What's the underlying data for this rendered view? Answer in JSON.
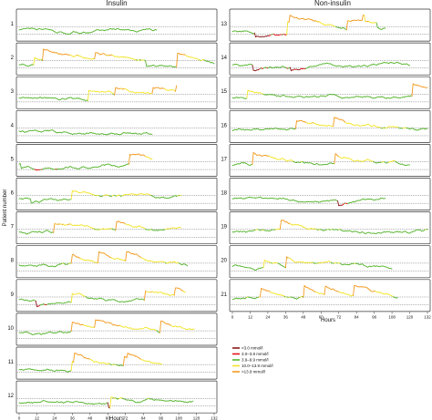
{
  "chart_data": {
    "type": "line",
    "ylabel": "Patient number",
    "xlabel": "Hours",
    "x_ticks": [
      0,
      12,
      24,
      36,
      48,
      60,
      72,
      84,
      96,
      108,
      120,
      132
    ],
    "x_range": [
      0,
      132
    ],
    "y_range_mmol": [
      0,
      22
    ],
    "reference_lines_mmol": [
      3.9,
      10.0
    ],
    "panels": [
      {
        "title": "Insulin",
        "patients": [
          {
            "id": "1",
            "hours": 93
          },
          {
            "id": "2",
            "hours": 132
          },
          {
            "id": "3",
            "hours": 107
          },
          {
            "id": "4",
            "hours": 90
          },
          {
            "id": "5",
            "hours": 90
          },
          {
            "id": "6",
            "hours": 110
          },
          {
            "id": "7",
            "hours": 110
          },
          {
            "id": "8",
            "hours": 114
          },
          {
            "id": "9",
            "hours": 113
          },
          {
            "id": "10",
            "hours": 119
          },
          {
            "id": "11",
            "hours": 97
          },
          {
            "id": "12",
            "hours": 118
          }
        ]
      },
      {
        "title": "Non-insulin",
        "patients": [
          {
            "id": "13",
            "hours": 104
          },
          {
            "id": "14",
            "hours": 120
          },
          {
            "id": "15",
            "hours": 132
          },
          {
            "id": "16",
            "hours": 132
          },
          {
            "id": "17",
            "hours": 120
          },
          {
            "id": "18",
            "hours": 104
          },
          {
            "id": "19",
            "hours": 132
          },
          {
            "id": "20",
            "hours": 108
          },
          {
            "id": "21",
            "hours": 112
          }
        ]
      }
    ],
    "legend": [
      {
        "label": "<3.0 mmol/l",
        "color": "#8b1a1a",
        "range": [
          0,
          3.0
        ]
      },
      {
        "label": "3.0–3.8 mmol/l",
        "color": "#e0161d",
        "range": [
          3.0,
          3.9
        ]
      },
      {
        "label": "3.9–9.9 mmol/l",
        "color": "#57b52f",
        "range": [
          3.9,
          10.0
        ]
      },
      {
        "label": "10.0–13.9 mmol/l",
        "color": "#f2e52a",
        "range": [
          10.0,
          14.0
        ]
      },
      {
        "label": ">13.9 mmol/l",
        "color": "#f39a1f",
        "range": [
          14.0,
          30
        ]
      }
    ]
  }
}
